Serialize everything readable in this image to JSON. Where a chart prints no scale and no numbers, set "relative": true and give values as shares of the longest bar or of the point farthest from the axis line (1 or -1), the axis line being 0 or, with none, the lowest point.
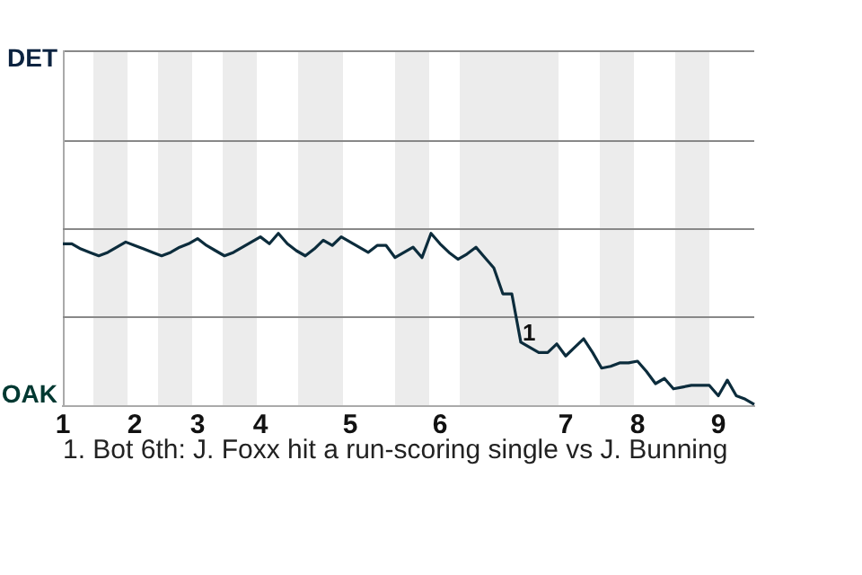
{
  "chart_data": {
    "type": "line",
    "relative": true,
    "categories": [
      "1",
      null,
      null,
      null,
      null,
      null,
      null,
      null,
      "2",
      null,
      null,
      null,
      null,
      null,
      null,
      "3",
      null,
      null,
      null,
      null,
      null,
      null,
      "4",
      null,
      null,
      null,
      null,
      null,
      null,
      null,
      null,
      null,
      "5",
      null,
      null,
      null,
      null,
      null,
      null,
      null,
      null,
      null,
      "6",
      null,
      null,
      null,
      null,
      null,
      null,
      null,
      null,
      null,
      null,
      null,
      null,
      null,
      "7",
      null,
      null,
      null,
      null,
      null,
      null,
      null,
      "8",
      null,
      null,
      null,
      null,
      null,
      null,
      null,
      null,
      "9",
      null,
      null,
      null,
      null
    ],
    "series": [
      {
        "color": "#0c2c3c",
        "values": [
          0.94,
          0.94,
          0.91,
          0.89,
          0.87,
          0.89,
          0.92,
          0.95,
          0.93,
          0.91,
          0.89,
          0.87,
          0.89,
          0.92,
          0.94,
          0.97,
          0.93,
          0.9,
          0.87,
          0.89,
          0.92,
          0.95,
          0.98,
          0.94,
          1,
          0.94,
          0.9,
          0.87,
          0.91,
          0.96,
          0.93,
          0.98,
          0.95,
          0.92,
          0.89,
          0.93,
          0.93,
          0.86,
          0.89,
          0.92,
          0.86,
          1,
          0.94,
          0.89,
          0.85,
          0.88,
          0.92,
          0.86,
          0.8,
          0.65,
          0.65,
          0.37,
          0.34,
          0.31,
          0.31,
          0.36,
          0.29,
          0.34,
          0.39,
          0.31,
          0.22,
          0.23,
          0.25,
          0.25,
          0.26,
          0.2,
          0.13,
          0.16,
          0.1,
          0.11,
          0.12,
          0.12,
          0.12,
          0.06,
          0.15,
          0.06,
          0.04,
          0.01
        ]
      }
    ],
    "annotations": [
      "DET",
      "OAK",
      {
        "text": "1",
        "y": 0.37
      },
      "1. Bot 6th: J. Foxx hit a run-scoring single vs J. Bunning"
    ],
    "ref_lines": [
      {
        "axis": "y",
        "value": 1.03,
        "color": "#888888"
      },
      {
        "axis": "y",
        "value": 0.52,
        "color": "#888888"
      }
    ],
    "legend": false,
    "marker": "none",
    "line_style": "solid"
  }
}
